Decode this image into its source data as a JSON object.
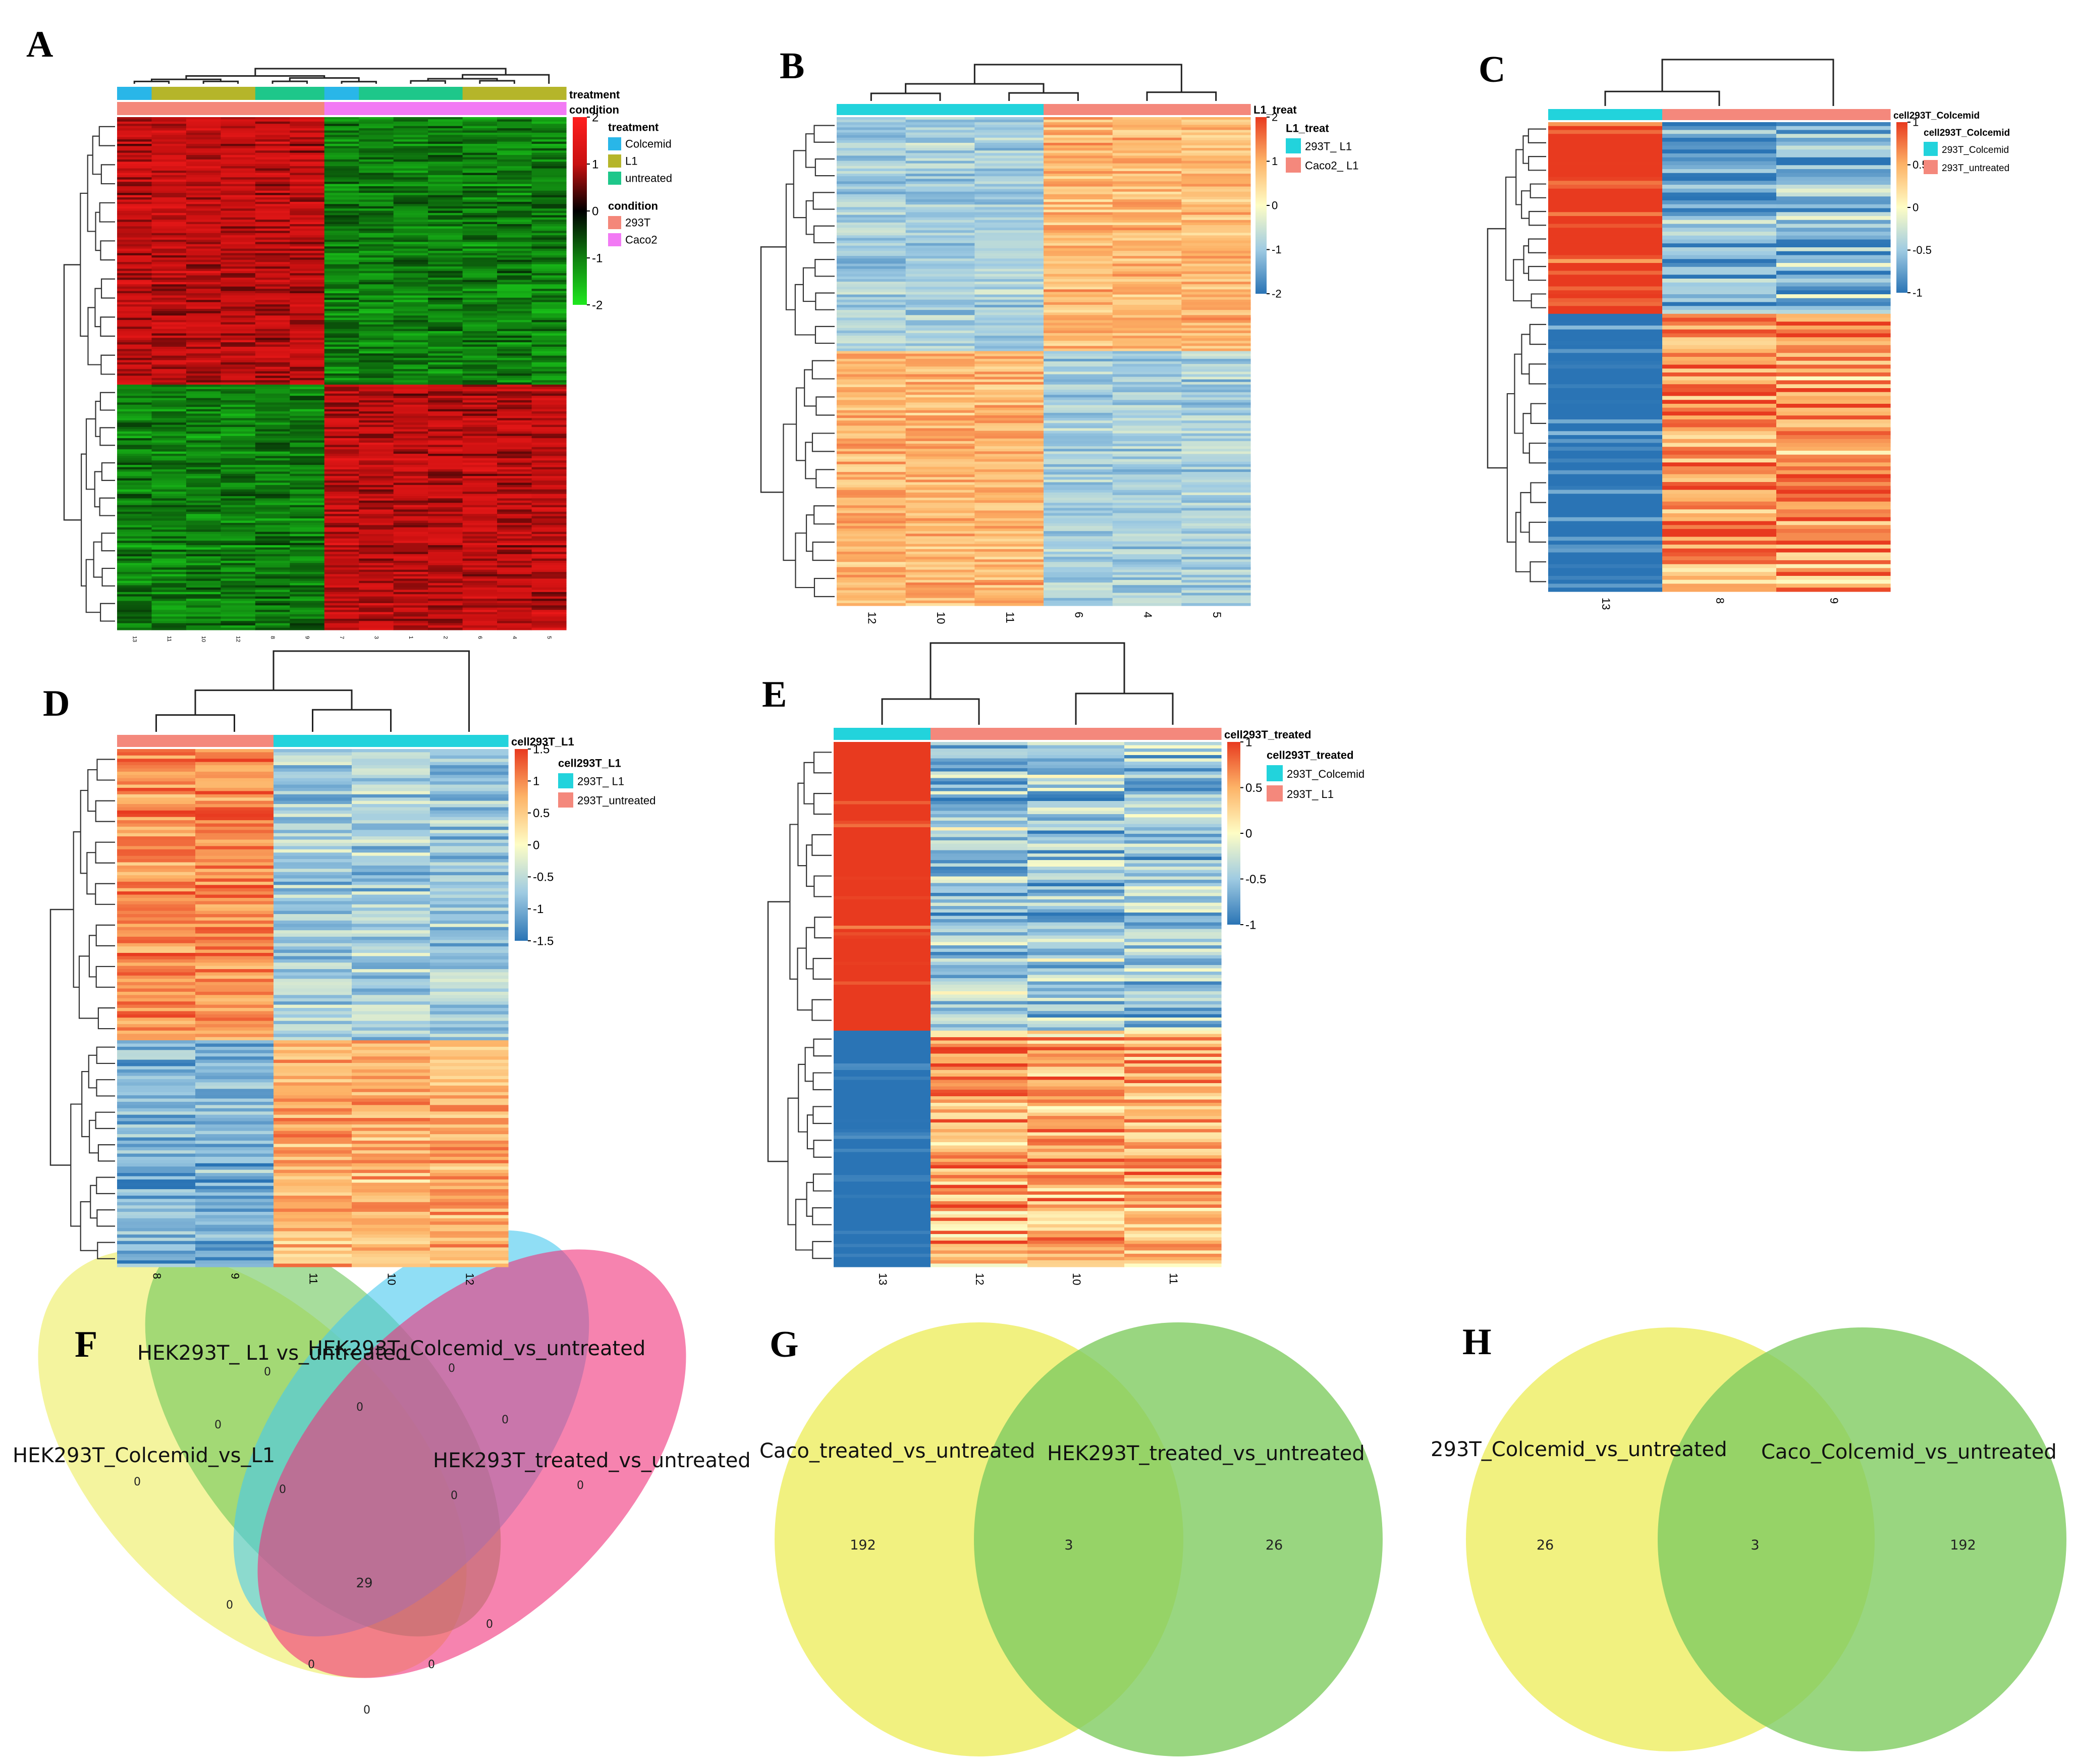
{
  "chart_data": [
    {
      "panel": "A",
      "type": "heatmap",
      "columns": [
        "13",
        "11",
        "10",
        "12",
        "8",
        "9",
        "7",
        "3",
        "1",
        "2",
        "6",
        "4",
        "5"
      ],
      "annotations": [
        {
          "name": "treatment",
          "values": [
            "Colcemid",
            "L1",
            "L1",
            "L1",
            "untreated",
            "untreated",
            "Colcemid",
            "untreated",
            "untreated",
            "untreated",
            "L1",
            "L1",
            "L1"
          ]
        },
        {
          "name": "condition",
          "values": [
            "293T",
            "293T",
            "293T",
            "293T",
            "293T",
            "293T",
            "Caco2",
            "Caco2",
            "Caco2",
            "Caco2",
            "Caco2",
            "Caco2",
            "Caco2"
          ]
        }
      ],
      "legend": [
        {
          "title": "treatment",
          "items": [
            {
              "label": "Colcemid",
              "color": "#29b6e8"
            },
            {
              "label": "L1",
              "color": "#b5b52a"
            },
            {
              "label": "untreated",
              "color": "#1ec78a"
            }
          ]
        },
        {
          "title": "condition",
          "items": [
            {
              "label": "293T",
              "color": "#f4877a"
            },
            {
              "label": "Caco2",
              "color": "#f27af4"
            }
          ]
        }
      ],
      "colorbar": {
        "ticks": [
          "2",
          "1",
          "0",
          "-1",
          "-2"
        ],
        "colors": [
          "#ff1e1e",
          "#c81010",
          "#000000",
          "#108010",
          "#1ee81e"
        ]
      },
      "row_clusters": [
        {
          "fraction": 0.52,
          "pattern": [
            1,
            1,
            1,
            1,
            1,
            1,
            -1,
            -1,
            -1,
            -1,
            -1,
            -1,
            -1
          ]
        },
        {
          "fraction": 0.48,
          "pattern": [
            -1,
            -1,
            -1,
            -1,
            -1,
            -1,
            1,
            1,
            1,
            1,
            1,
            1,
            1
          ]
        }
      ]
    },
    {
      "panel": "B",
      "type": "heatmap",
      "columns": [
        "12",
        "10",
        "11",
        "6",
        "4",
        "5"
      ],
      "annotation": {
        "name": "L1_treat",
        "values": [
          "293T_ L1",
          "293T_ L1",
          "293T_ L1",
          "Caco2_ L1",
          "Caco2_ L1",
          "Caco2_ L1"
        ]
      },
      "legend": {
        "title": "L1_treat",
        "items": [
          {
            "label": "293T_ L1",
            "color": "#22d3dc"
          },
          {
            "label": "Caco2_ L1",
            "color": "#f4887c"
          }
        ]
      },
      "colorbar": {
        "ticks": [
          "2",
          "1",
          "0",
          "-1",
          "-2"
        ],
        "colors": [
          "#e83a1f",
          "#fdb367",
          "#fefdc5",
          "#9fcbe2",
          "#2a74b5"
        ]
      },
      "row_clusters": [
        {
          "fraction": 0.48,
          "pattern": [
            -0.9,
            -0.9,
            -0.9,
            0.9,
            0.9,
            0.9
          ]
        },
        {
          "fraction": 0.52,
          "pattern": [
            0.9,
            0.9,
            0.9,
            -0.9,
            -0.9,
            -0.9
          ]
        }
      ]
    },
    {
      "panel": "C",
      "type": "heatmap",
      "columns": [
        "13",
        "8",
        "9"
      ],
      "annotation": {
        "name": "cell293T_Colcemid",
        "values": [
          "293T_Colcemid",
          "293T_untreated",
          "293T_untreated"
        ]
      },
      "legend": {
        "title": "cell293T_Colcemid",
        "items": [
          {
            "label": "293T_Colcemid",
            "color": "#22d3dc"
          },
          {
            "label": "293T_untreated",
            "color": "#f4887c"
          }
        ]
      },
      "colorbar": {
        "ticks": [
          "1",
          "0.5",
          "0",
          "-0.5",
          "-1"
        ],
        "colors": [
          "#e83a1f",
          "#fdb367",
          "#fefdc5",
          "#9fcbe2",
          "#2a74b5"
        ]
      },
      "row_clusters": [
        {
          "fraction": 0.41,
          "pattern": [
            1.15,
            -0.6,
            -0.6
          ]
        },
        {
          "fraction": 0.59,
          "pattern": [
            -1.15,
            0.6,
            0.6
          ]
        }
      ]
    },
    {
      "panel": "D",
      "type": "heatmap",
      "columns": [
        "8",
        "9",
        "11",
        "10",
        "12"
      ],
      "annotation": {
        "name": "cell293T_L1",
        "values": [
          "293T_untreated",
          "293T_untreated",
          "293T_ L1",
          "293T_ L1",
          "293T_ L1"
        ]
      },
      "legend": {
        "title": "cell293T_L1",
        "items": [
          {
            "label": "293T_ L1",
            "color": "#22d3dc"
          },
          {
            "label": "293T_untreated",
            "color": "#f4887c"
          }
        ]
      },
      "colorbar": {
        "ticks": [
          "1.5",
          "1",
          "0.5",
          "0",
          "-0.5",
          "-1",
          "-1.5"
        ],
        "colors": [
          "#e83a1f",
          "#fdb367",
          "#fefdc5",
          "#9fcbe2",
          "#2a74b5"
        ]
      },
      "row_clusters": [
        {
          "fraction": 0.56,
          "pattern": [
            1.0,
            1.0,
            -0.7,
            -0.7,
            -0.7
          ]
        },
        {
          "fraction": 0.44,
          "pattern": [
            -1.0,
            -1.0,
            0.7,
            0.7,
            0.7
          ]
        }
      ]
    },
    {
      "panel": "E",
      "type": "heatmap",
      "columns": [
        "13",
        "12",
        "10",
        "11"
      ],
      "annotation": {
        "name": "cell293T_treated",
        "values": [
          "293T_Colcemid",
          "293T_ L1",
          "293T_ L1",
          "293T_ L1"
        ]
      },
      "legend": {
        "title": "cell293T_treated",
        "items": [
          {
            "label": "293T_Colcemid",
            "color": "#22d3dc"
          },
          {
            "label": "293T_ L1",
            "color": "#f4887c"
          }
        ]
      },
      "colorbar": {
        "ticks": [
          "1",
          "0.5",
          "0",
          "-0.5",
          "-1"
        ],
        "colors": [
          "#e83a1f",
          "#fdb367",
          "#fefdc5",
          "#9fcbe2",
          "#2a74b5"
        ]
      },
      "row_clusters": [
        {
          "fraction": 0.55,
          "pattern": [
            1.3,
            -0.5,
            -0.5,
            -0.5
          ]
        },
        {
          "fraction": 0.45,
          "pattern": [
            -1.3,
            0.5,
            0.5,
            0.5
          ]
        }
      ]
    },
    {
      "panel": "F",
      "type": "venn4",
      "sets": [
        "HEK293T_Colcemid_vs_L1",
        "HEK293T_ L1 vs_untreated",
        "HEK293T_Colcemid_vs_untreated",
        "HEK293T_treated_vs_untreated"
      ],
      "set_colors": [
        "#eded5e",
        "#6dc65a",
        "#46c8ee",
        "#f0307a"
      ],
      "regions": [
        "0",
        "0",
        "0",
        "0",
        "0",
        "0",
        "0",
        "0",
        "0",
        "0",
        "29",
        "0",
        "0",
        "0",
        "0"
      ]
    },
    {
      "panel": "G",
      "type": "venn2",
      "sets": [
        "Caco_treated_vs_untreated",
        "HEK293T_treated_vs_untreated"
      ],
      "set_colors": [
        "#eeee6a",
        "#80cc60"
      ],
      "regions": {
        "only_a": "192",
        "both": "3",
        "only_b": "26"
      }
    },
    {
      "panel": "H",
      "type": "venn2",
      "sets": [
        "293T_Colcemid_vs_untreated",
        "Caco_Colcemid_vs_untreated"
      ],
      "set_colors": [
        "#eeee6a",
        "#80cc60"
      ],
      "regions": {
        "only_a": "26",
        "both": "3",
        "only_b": "192"
      }
    }
  ]
}
